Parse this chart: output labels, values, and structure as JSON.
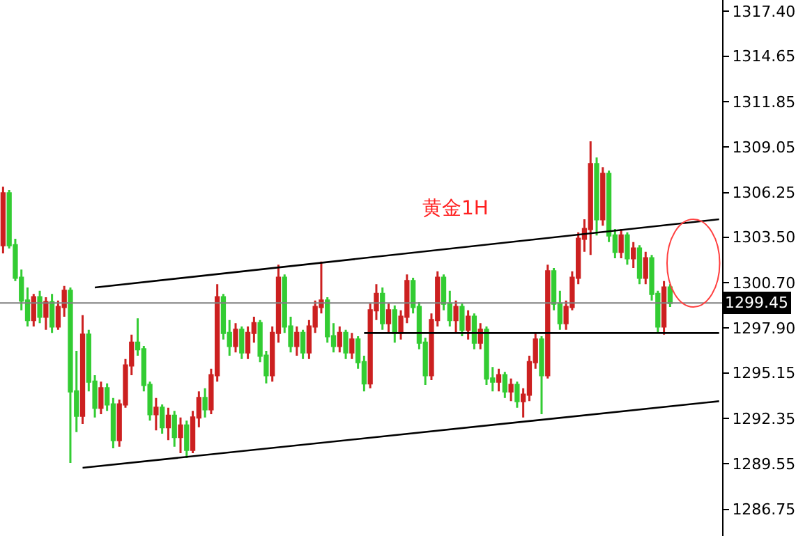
{
  "chart_data": {
    "type": "candlestick",
    "categories": [
      null,
      null,
      null,
      null,
      null,
      null,
      null,
      null,
      null,
      null,
      null,
      null,
      null,
      null,
      null,
      null,
      null,
      null,
      null,
      null,
      null,
      null,
      null,
      null,
      null,
      null,
      null,
      null,
      null,
      null,
      null,
      null,
      null,
      null,
      null,
      null,
      null,
      null,
      null,
      null,
      null,
      null,
      null,
      null,
      null,
      null,
      null,
      null,
      null,
      null,
      null,
      null,
      null,
      null,
      null,
      null,
      null,
      null,
      null,
      null,
      null,
      null,
      null,
      null,
      null,
      null,
      null,
      null,
      null,
      null,
      null,
      null,
      null,
      null,
      null,
      null,
      null,
      null,
      null,
      null,
      null,
      null,
      null,
      null,
      null,
      null,
      null,
      null,
      null,
      null,
      null,
      null,
      null,
      null,
      null,
      null,
      null,
      null,
      null,
      null,
      null,
      null,
      null,
      null,
      null,
      null,
      null,
      null,
      null,
      null,
      null,
      null,
      null,
      null,
      null,
      null,
      null,
      null
    ],
    "ohlc": [
      [
        1303.0,
        1306.6,
        1302.5,
        1306.2
      ],
      [
        1306.2,
        1306.4,
        1302.8,
        1303.0
      ],
      [
        1303.0,
        1303.4,
        1300.8,
        1301.0
      ],
      [
        1301.0,
        1301.5,
        1299.0,
        1299.6
      ],
      [
        1299.6,
        1300.4,
        1298.0,
        1298.4
      ],
      [
        1298.4,
        1300.0,
        1298.0,
        1299.8
      ],
      [
        1299.8,
        1300.2,
        1298.2,
        1298.6
      ],
      [
        1298.6,
        1299.8,
        1297.8,
        1299.5
      ],
      [
        1299.5,
        1300.0,
        1297.6,
        1298.0
      ],
      [
        1298.0,
        1299.6,
        1297.8,
        1299.2
      ],
      [
        1299.2,
        1300.5,
        1298.6,
        1300.2
      ],
      [
        1300.2,
        1300.4,
        1289.6,
        1294.0
      ],
      [
        1294.0,
        1296.5,
        1291.5,
        1292.5
      ],
      [
        1292.5,
        1298.7,
        1292.0,
        1297.5
      ],
      [
        1297.5,
        1297.8,
        1294.0,
        1294.6
      ],
      [
        1294.6,
        1295.0,
        1292.4,
        1293.0
      ],
      [
        1293.0,
        1294.6,
        1292.6,
        1294.2
      ],
      [
        1294.2,
        1294.5,
        1292.8,
        1293.2
      ],
      [
        1293.2,
        1293.6,
        1290.5,
        1291.0
      ],
      [
        1291.0,
        1293.5,
        1290.6,
        1293.2
      ],
      [
        1293.2,
        1296.0,
        1293.0,
        1295.6
      ],
      [
        1295.6,
        1297.5,
        1295.0,
        1297.0
      ],
      [
        1297.0,
        1298.5,
        1296.2,
        1296.6
      ],
      [
        1296.6,
        1296.8,
        1294.0,
        1294.4
      ],
      [
        1294.4,
        1294.6,
        1292.2,
        1292.6
      ],
      [
        1292.6,
        1293.6,
        1291.6,
        1293.0
      ],
      [
        1293.0,
        1293.2,
        1291.4,
        1291.8
      ],
      [
        1291.8,
        1293.0,
        1291.0,
        1292.5
      ],
      [
        1292.5,
        1292.8,
        1290.6,
        1291.2
      ],
      [
        1291.2,
        1292.4,
        1290.2,
        1291.9
      ],
      [
        1291.9,
        1292.2,
        1289.9,
        1290.4
      ],
      [
        1290.4,
        1292.8,
        1290.2,
        1292.4
      ],
      [
        1292.4,
        1294.0,
        1291.8,
        1293.6
      ],
      [
        1293.6,
        1294.2,
        1292.4,
        1292.9
      ],
      [
        1292.9,
        1295.4,
        1292.6,
        1295.0
      ],
      [
        1295.0,
        1300.6,
        1294.6,
        1299.8
      ],
      [
        1299.8,
        1300.0,
        1297.2,
        1297.6
      ],
      [
        1297.6,
        1298.4,
        1296.2,
        1296.8
      ],
      [
        1296.8,
        1298.2,
        1296.4,
        1297.8
      ],
      [
        1297.8,
        1298.0,
        1296.0,
        1296.4
      ],
      [
        1296.4,
        1298.0,
        1296.0,
        1297.6
      ],
      [
        1297.6,
        1298.6,
        1297.0,
        1298.2
      ],
      [
        1298.2,
        1298.4,
        1295.8,
        1296.2
      ],
      [
        1296.2,
        1296.5,
        1294.5,
        1295.0
      ],
      [
        1295.0,
        1298.0,
        1294.6,
        1297.6
      ],
      [
        1297.6,
        1301.8,
        1297.0,
        1301.0
      ],
      [
        1301.0,
        1301.2,
        1297.6,
        1298.0
      ],
      [
        1298.0,
        1298.6,
        1296.4,
        1296.8
      ],
      [
        1296.8,
        1298.0,
        1296.2,
        1297.6
      ],
      [
        1297.6,
        1297.8,
        1296.0,
        1296.4
      ],
      [
        1296.4,
        1298.4,
        1296.0,
        1298.0
      ],
      [
        1298.0,
        1299.6,
        1297.6,
        1299.2
      ],
      [
        1299.2,
        1302.0,
        1298.8,
        1299.6
      ],
      [
        1299.6,
        1299.8,
        1297.0,
        1297.4
      ],
      [
        1297.4,
        1298.2,
        1296.4,
        1296.8
      ],
      [
        1296.8,
        1298.0,
        1296.4,
        1297.6
      ],
      [
        1297.6,
        1297.8,
        1296.0,
        1296.4
      ],
      [
        1296.4,
        1297.6,
        1296.0,
        1297.2
      ],
      [
        1297.2,
        1297.4,
        1295.4,
        1295.8
      ],
      [
        1295.8,
        1296.2,
        1294.0,
        1294.5
      ],
      [
        1294.5,
        1299.4,
        1294.2,
        1299.0
      ],
      [
        1299.0,
        1300.6,
        1298.4,
        1300.0
      ],
      [
        1300.0,
        1300.4,
        1297.8,
        1298.2
      ],
      [
        1298.2,
        1299.4,
        1297.6,
        1299.0
      ],
      [
        1299.0,
        1299.3,
        1297.0,
        1297.6
      ],
      [
        1297.6,
        1299.0,
        1297.2,
        1298.6
      ],
      [
        1298.6,
        1301.2,
        1298.2,
        1300.8
      ],
      [
        1300.8,
        1301.0,
        1298.8,
        1299.2
      ],
      [
        1299.2,
        1299.5,
        1296.6,
        1297.0
      ],
      [
        1297.0,
        1297.3,
        1294.4,
        1295.0
      ],
      [
        1295.0,
        1298.8,
        1294.7,
        1298.4
      ],
      [
        1298.4,
        1301.4,
        1298.0,
        1301.0
      ],
      [
        1301.0,
        1301.2,
        1299.0,
        1299.4
      ],
      [
        1299.4,
        1300.2,
        1298.0,
        1298.4
      ],
      [
        1298.4,
        1299.6,
        1297.6,
        1299.2
      ],
      [
        1299.2,
        1299.4,
        1297.4,
        1297.8
      ],
      [
        1297.8,
        1299.0,
        1297.2,
        1298.6
      ],
      [
        1298.6,
        1298.8,
        1296.6,
        1297.0
      ],
      [
        1297.0,
        1298.2,
        1296.6,
        1297.8
      ],
      [
        1297.8,
        1298.0,
        1294.4,
        1294.8
      ],
      [
        1294.8,
        1295.5,
        1294.0,
        1294.6
      ],
      [
        1294.6,
        1295.4,
        1294.0,
        1295.0
      ],
      [
        1295.0,
        1295.2,
        1293.6,
        1294.0
      ],
      [
        1294.0,
        1294.8,
        1293.4,
        1294.4
      ],
      [
        1294.4,
        1294.6,
        1293.0,
        1293.4
      ],
      [
        1293.4,
        1294.2,
        1292.4,
        1293.8
      ],
      [
        1293.8,
        1296.2,
        1293.4,
        1295.8
      ],
      [
        1295.8,
        1297.6,
        1295.4,
        1297.2
      ],
      [
        1297.2,
        1297.4,
        1292.6,
        1295.0
      ],
      [
        1295.0,
        1301.8,
        1294.8,
        1301.4
      ],
      [
        1301.4,
        1301.6,
        1299.0,
        1299.4
      ],
      [
        1299.4,
        1300.2,
        1297.8,
        1298.2
      ],
      [
        1298.2,
        1299.6,
        1297.8,
        1299.2
      ],
      [
        1299.2,
        1301.4,
        1299.0,
        1301.0
      ],
      [
        1301.0,
        1303.8,
        1300.6,
        1303.4
      ],
      [
        1303.4,
        1304.6,
        1302.6,
        1304.0
      ],
      [
        1304.0,
        1309.4,
        1302.4,
        1308.0
      ],
      [
        1308.0,
        1308.4,
        1303.6,
        1304.6
      ],
      [
        1304.6,
        1307.8,
        1304.2,
        1307.4
      ],
      [
        1307.4,
        1307.6,
        1303.2,
        1303.6
      ],
      [
        1303.6,
        1304.0,
        1302.2,
        1302.6
      ],
      [
        1302.6,
        1304.0,
        1302.2,
        1303.6
      ],
      [
        1303.6,
        1303.8,
        1301.8,
        1302.2
      ],
      [
        1302.2,
        1303.2,
        1301.6,
        1302.8
      ],
      [
        1302.8,
        1303.0,
        1300.6,
        1301.0
      ],
      [
        1301.0,
        1302.6,
        1300.6,
        1302.2
      ],
      [
        1302.2,
        1302.4,
        1299.6,
        1300.0
      ],
      [
        1300.0,
        1300.2,
        1297.6,
        1298.0
      ],
      [
        1298.0,
        1300.8,
        1297.5,
        1300.4
      ],
      [
        1300.4,
        1300.6,
        1299.2,
        1299.45
      ],
      null,
      null,
      null,
      null,
      null,
      null,
      null,
      null
    ],
    "colors": [
      "#cc2020",
      "#33cc33",
      "#33cc33",
      "#33cc33",
      "#33cc33",
      "#cc2020",
      "#33cc33",
      "#cc2020",
      "#33cc33",
      "#cc2020",
      "#cc2020",
      "#33cc33",
      "#33cc33",
      "#cc2020",
      "#33cc33",
      "#33cc33",
      "#cc2020",
      "#33cc33",
      "#33cc33",
      "#cc2020",
      "#cc2020",
      "#cc2020",
      "#33cc33",
      "#33cc33",
      "#33cc33",
      "#cc2020",
      "#33cc33",
      "#cc2020",
      "#33cc33",
      "#cc2020",
      "#33cc33",
      "#cc2020",
      "#cc2020",
      "#33cc33",
      "#cc2020",
      "#cc2020",
      "#33cc33",
      "#33cc33",
      "#cc2020",
      "#33cc33",
      "#cc2020",
      "#cc2020",
      "#33cc33",
      "#33cc33",
      "#cc2020",
      "#cc2020",
      "#33cc33",
      "#33cc33",
      "#cc2020",
      "#33cc33",
      "#cc2020",
      "#cc2020",
      "#cc2020",
      "#33cc33",
      "#33cc33",
      "#cc2020",
      "#33cc33",
      "#cc2020",
      "#33cc33",
      "#33cc33",
      "#cc2020",
      "#cc2020",
      "#33cc33",
      "#cc2020",
      "#33cc33",
      "#cc2020",
      "#cc2020",
      "#33cc33",
      "#33cc33",
      "#33cc33",
      "#cc2020",
      "#cc2020",
      "#33cc33",
      "#33cc33",
      "#cc2020",
      "#33cc33",
      "#cc2020",
      "#33cc33",
      "#cc2020",
      "#33cc33",
      "#33cc33",
      "#cc2020",
      "#33cc33",
      "#cc2020",
      "#33cc33",
      "#cc2020",
      "#cc2020",
      "#cc2020",
      "#33cc33",
      "#cc2020",
      "#33cc33",
      "#33cc33",
      "#cc2020",
      "#cc2020",
      "#cc2020",
      "#cc2020",
      "#cc2020",
      "#33cc33",
      "#cc2020",
      "#33cc33",
      "#33cc33",
      "#cc2020",
      "#33cc33",
      "#cc2020",
      "#33cc33",
      "#cc2020",
      "#33cc33",
      "#33cc33",
      "#cc2020",
      "#33cc33",
      null,
      null,
      null,
      null,
      null,
      null,
      null,
      null
    ],
    "ylim": [
      1285.1,
      1318.1
    ],
    "yticks": [
      1286.75,
      1289.55,
      1292.35,
      1295.15,
      {
        "value": 1297.9,
        "label": "1297.90"
      },
      {
        "value": 1300.7,
        "label": "1300.70"
      },
      {
        "value": 1303.5,
        "label": "1303.50"
      },
      1306.25,
      1309.05,
      1311.85,
      1314.65,
      {
        "value": 1317.4,
        "label": "1317.40"
      }
    ],
    "tick_labels": "y",
    "ref_lines": [
      {
        "axis": "y",
        "value": 1299.45,
        "label": "1299.45",
        "color": "#808080"
      }
    ],
    "series": [
      {
        "type": "line",
        "color": "#000000",
        "values": [
          null,
          null,
          null,
          null,
          null,
          null,
          null,
          null,
          null,
          null,
          null,
          null,
          null,
          null,
          null,
          1300.4,
          null,
          null,
          null,
          null,
          null,
          null,
          null,
          null,
          null,
          null,
          null,
          null,
          null,
          null,
          null,
          null,
          null,
          null,
          null,
          null,
          null,
          null,
          null,
          null,
          null,
          null,
          null,
          null,
          null,
          null,
          null,
          null,
          null,
          null,
          null,
          null,
          null,
          null,
          null,
          null,
          null,
          null,
          null,
          null,
          null,
          null,
          null,
          null,
          null,
          null,
          null,
          null,
          null,
          null,
          null,
          null,
          null,
          null,
          null,
          null,
          null,
          null,
          null,
          null,
          null,
          null,
          null,
          null,
          null,
          null,
          null,
          null,
          null,
          null,
          null,
          null,
          null,
          null,
          null,
          null,
          null,
          null,
          null,
          null,
          null,
          null,
          null,
          null,
          null,
          null,
          null,
          null,
          null,
          null,
          null,
          null,
          null,
          null,
          null,
          null,
          null,
          1304.6
        ]
      },
      {
        "type": "line",
        "color": "#000000",
        "values": [
          null,
          null,
          null,
          null,
          null,
          null,
          null,
          null,
          null,
          null,
          null,
          null,
          null,
          1289.3,
          null,
          null,
          null,
          null,
          null,
          null,
          null,
          null,
          null,
          null,
          null,
          null,
          null,
          null,
          null,
          null,
          null,
          null,
          null,
          null,
          null,
          null,
          null,
          null,
          null,
          null,
          null,
          null,
          null,
          null,
          null,
          null,
          null,
          null,
          null,
          null,
          null,
          null,
          null,
          null,
          null,
          null,
          null,
          null,
          null,
          null,
          null,
          null,
          null,
          null,
          null,
          null,
          null,
          null,
          null,
          null,
          null,
          null,
          null,
          null,
          null,
          null,
          null,
          null,
          null,
          null,
          null,
          null,
          null,
          null,
          null,
          null,
          null,
          null,
          null,
          null,
          null,
          null,
          null,
          null,
          null,
          null,
          null,
          null,
          null,
          null,
          null,
          null,
          null,
          null,
          null,
          null,
          null,
          null,
          null,
          null,
          null,
          null,
          null,
          null,
          null,
          null,
          null,
          1293.4
        ]
      },
      {
        "type": "line",
        "color": "#000000",
        "values": [
          null,
          null,
          null,
          null,
          null,
          null,
          null,
          null,
          null,
          null,
          null,
          null,
          null,
          null,
          null,
          null,
          null,
          null,
          null,
          null,
          null,
          null,
          null,
          null,
          null,
          null,
          null,
          null,
          null,
          null,
          null,
          null,
          null,
          null,
          null,
          null,
          null,
          null,
          null,
          null,
          null,
          null,
          null,
          null,
          null,
          null,
          null,
          null,
          null,
          null,
          null,
          null,
          null,
          null,
          null,
          null,
          null,
          null,
          null,
          1297.6,
          null,
          null,
          null,
          null,
          null,
          null,
          null,
          null,
          null,
          null,
          null,
          null,
          null,
          null,
          null,
          null,
          null,
          null,
          null,
          null,
          null,
          null,
          null,
          null,
          null,
          null,
          null,
          null,
          null,
          null,
          null,
          null,
          null,
          null,
          null,
          null,
          null,
          null,
          null,
          null,
          null,
          null,
          null,
          null,
          null,
          null,
          null,
          null,
          null,
          null,
          null,
          null,
          null,
          null,
          null,
          null,
          null,
          1297.6
        ]
      }
    ],
    "annotations": [
      "黄金1H"
    ]
  }
}
